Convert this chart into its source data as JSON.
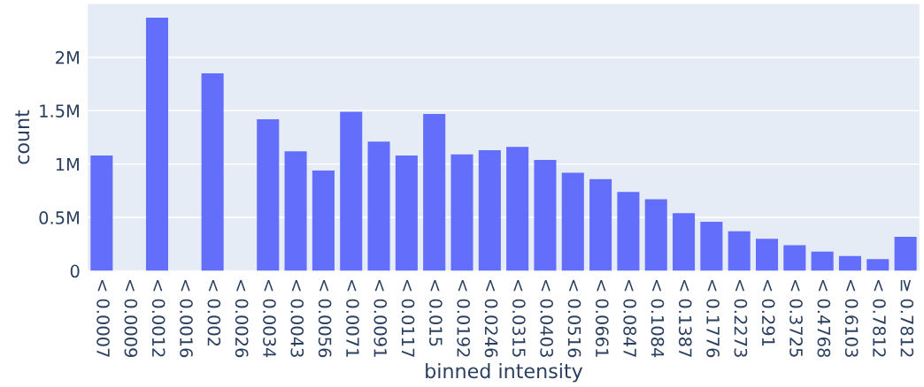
{
  "chart_data": {
    "type": "bar",
    "xlabel": "binned intensity",
    "ylabel": "count",
    "categories": [
      "< 0.0007",
      "< 0.0009",
      "< 0.0012",
      "< 0.0016",
      "< 0.002",
      "< 0.0026",
      "< 0.0034",
      "< 0.0043",
      "< 0.0056",
      "< 0.0071",
      "< 0.0091",
      "< 0.0117",
      "< 0.015",
      "< 0.0192",
      "< 0.0246",
      "< 0.0315",
      "< 0.0403",
      "< 0.0516",
      "< 0.0661",
      "< 0.0847",
      "< 0.1084",
      "< 0.1387",
      "< 0.1776",
      "< 0.2273",
      "< 0.291",
      "< 0.3725",
      "< 0.4768",
      "< 0.6103",
      "< 0.7812",
      "≥ 0.7812"
    ],
    "values": [
      1080000,
      0,
      2370000,
      0,
      1850000,
      0,
      1420000,
      1120000,
      940000,
      1490000,
      1210000,
      1080000,
      1470000,
      1090000,
      1130000,
      1160000,
      1040000,
      920000,
      860000,
      740000,
      670000,
      540000,
      460000,
      370000,
      300000,
      240000,
      180000,
      140000,
      110000,
      320000
    ],
    "color": "#636efa",
    "ylim": [
      0,
      2500000
    ],
    "yticks": [
      {
        "value": 0,
        "label": "0"
      },
      {
        "value": 500000,
        "label": "0.5M"
      },
      {
        "value": 1000000,
        "label": "1M"
      },
      {
        "value": 1500000,
        "label": "1.5M"
      },
      {
        "value": 2000000,
        "label": "2M"
      }
    ],
    "grid": "y",
    "legend": false
  }
}
